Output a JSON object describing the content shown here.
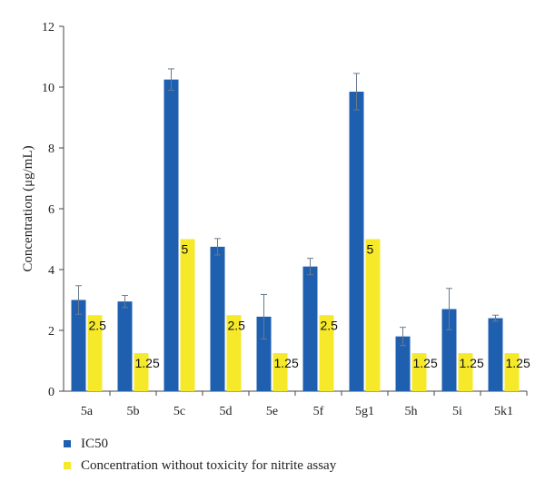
{
  "chart_data": {
    "type": "bar",
    "ylabel": "Concentration (μg/mL)",
    "ylim": [
      0,
      12
    ],
    "yticks": [
      0,
      2,
      4,
      6,
      8,
      10,
      12
    ],
    "categories": [
      "5a",
      "5b",
      "5c",
      "5d",
      "5e",
      "5f",
      "5g1",
      "5h",
      "5i",
      "5k1"
    ],
    "series": [
      {
        "name": "IC50",
        "color": "#1f5fb0",
        "values": [
          3.0,
          2.95,
          10.25,
          4.75,
          2.45,
          4.1,
          9.85,
          1.8,
          2.7,
          2.4
        ],
        "error": [
          0.47,
          0.2,
          0.35,
          0.27,
          0.73,
          0.27,
          0.6,
          0.3,
          0.68,
          0.1
        ]
      },
      {
        "name": "Concentration without toxicity for nitrite assay",
        "color": "#f5e92a",
        "values": [
          2.5,
          1.25,
          5,
          2.5,
          1.25,
          2.5,
          5,
          1.25,
          1.25,
          1.25
        ],
        "labels": [
          "2.5",
          "1.25",
          "5",
          "2.5",
          "1.25",
          "2.5",
          "5",
          "1.25",
          "1.25",
          "1.25"
        ]
      }
    ],
    "legend_position": "bottom-left",
    "grid": false
  }
}
